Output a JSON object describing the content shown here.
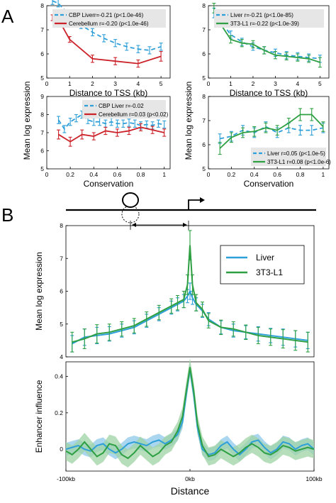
{
  "panel_labels": [
    "A",
    "B"
  ],
  "colors": {
    "cbp_liver": "#2e9fd8",
    "cerebellum": "#cc2229",
    "liver": "#2e9fd8",
    "l1": "#2ea043",
    "band_liver": "#8dc8ea",
    "band_l1": "#9fd3a4"
  },
  "diagram": {
    "tss_label": "0kb"
  },
  "chart_data": [
    {
      "id": "a1",
      "type": "line",
      "xlabel": "Distance to TSS (kb)",
      "ylabel": "",
      "xlim": [
        0,
        5.4
      ],
      "ylim": [
        5,
        8
      ],
      "xticks": [
        0,
        1,
        2,
        3,
        4,
        5
      ],
      "yticks": [
        5,
        6,
        7,
        8
      ],
      "series": [
        {
          "name": "CBP Liver",
          "legend": "CBP Liverr=-0.21 (p<1.0e-46)",
          "color_key": "cbp_liver",
          "dashed": true,
          "x": [
            0.25,
            0.5,
            1,
            1.5,
            2,
            2.5,
            3,
            3.5,
            4,
            4.5,
            5
          ],
          "y": [
            8.2,
            8.1,
            7.6,
            7.2,
            6.9,
            6.65,
            6.45,
            6.3,
            6.2,
            6.15,
            6.3
          ],
          "err": [
            0.15,
            0.15,
            0.15,
            0.15,
            0.15,
            0.15,
            0.15,
            0.15,
            0.15,
            0.15,
            0.15
          ]
        },
        {
          "name": "Cerebellum",
          "legend": "Cerebellum r=-0.20 (p<1.0e-46)",
          "color_key": "cerebellum",
          "dashed": false,
          "x": [
            0.25,
            0.5,
            1,
            2,
            3,
            4,
            5
          ],
          "y": [
            7.5,
            7.45,
            6.6,
            5.8,
            5.7,
            5.6,
            5.9
          ],
          "err": [
            0.12,
            0.12,
            0.12,
            0.15,
            0.15,
            0.15,
            0.2
          ]
        }
      ]
    },
    {
      "id": "a2",
      "type": "line",
      "xlabel": "Distance to TSS (kb)",
      "ylabel": "",
      "xlim": [
        0,
        5.4
      ],
      "ylim": [
        5,
        8
      ],
      "xticks": [
        0,
        1,
        2,
        3,
        4,
        5
      ],
      "yticks": [
        5,
        6,
        7,
        8
      ],
      "series": [
        {
          "name": "Liver",
          "legend": "Liver r=-0.21 (p<1.0e-85)",
          "color_key": "liver",
          "dashed": true,
          "x": [
            0.25,
            0.5,
            1,
            1.5,
            2,
            2.5,
            3,
            3.5,
            4,
            4.5,
            5
          ],
          "y": [
            7.7,
            7.4,
            6.8,
            6.5,
            6.3,
            6.15,
            6.05,
            5.95,
            5.9,
            5.85,
            5.8
          ],
          "err": [
            0.2,
            0.15,
            0.15,
            0.15,
            0.15,
            0.15,
            0.15,
            0.15,
            0.15,
            0.15,
            0.15
          ]
        },
        {
          "name": "3T3-L1",
          "legend": "3T3-L1 r=-0.22 (p<1.0e-39)",
          "color_key": "l1",
          "dashed": false,
          "x": [
            0.25,
            0.5,
            1,
            1.5,
            2,
            2.5,
            3,
            3.5,
            4,
            4.5,
            5
          ],
          "y": [
            7.9,
            7.3,
            6.6,
            6.45,
            6.4,
            6.15,
            5.95,
            5.9,
            5.85,
            5.8,
            5.65
          ],
          "err": [
            0.2,
            0.15,
            0.15,
            0.15,
            0.15,
            0.15,
            0.15,
            0.15,
            0.15,
            0.15,
            0.2
          ]
        }
      ]
    },
    {
      "id": "a3",
      "type": "line",
      "xlabel": "Conservation",
      "ylabel": "",
      "xlim": [
        0,
        1.05
      ],
      "ylim": [
        5,
        9
      ],
      "xticks": [
        0,
        0.2,
        0.4,
        0.6,
        0.8,
        1
      ],
      "yticks": [
        5,
        6,
        7,
        8,
        9
      ],
      "series": [
        {
          "name": "CBP Liver",
          "legend": "CBP Liver r=-0.02",
          "color_key": "cbp_liver",
          "dashed": true,
          "x": [
            0.1,
            0.15,
            0.2,
            0.25,
            0.3,
            0.35,
            0.4,
            0.45,
            0.5,
            0.55,
            0.6,
            0.65,
            0.7,
            0.75,
            0.8,
            0.85,
            0.9,
            0.95,
            1.0
          ],
          "y": [
            7.7,
            7.2,
            7.6,
            7.8,
            8.0,
            7.7,
            7.6,
            7.6,
            7.5,
            7.6,
            7.5,
            7.5,
            7.55,
            7.5,
            7.4,
            7.45,
            7.4,
            7.5,
            7.45
          ],
          "err": [
            0.2,
            0.2,
            0.2,
            0.2,
            0.2,
            0.2,
            0.2,
            0.2,
            0.2,
            0.2,
            0.2,
            0.2,
            0.2,
            0.2,
            0.2,
            0.2,
            0.2,
            0.2,
            0.2
          ]
        },
        {
          "name": "Cerebellum",
          "legend": "Cerebellum r=0.03 (p<0.02)",
          "color_key": "cerebellum",
          "dashed": false,
          "x": [
            0.1,
            0.2,
            0.3,
            0.4,
            0.5,
            0.6,
            0.7,
            0.8,
            0.9,
            1.0
          ],
          "y": [
            6.9,
            6.5,
            6.9,
            6.8,
            7.1,
            7.0,
            7.1,
            7.3,
            7.15,
            7.0
          ],
          "err": [
            0.25,
            0.25,
            0.25,
            0.2,
            0.2,
            0.2,
            0.2,
            0.2,
            0.2,
            0.2
          ]
        }
      ]
    },
    {
      "id": "a4",
      "type": "line",
      "xlabel": "Conservation",
      "ylabel": "",
      "xlim": [
        0,
        1.05
      ],
      "ylim": [
        5,
        8
      ],
      "xticks": [
        0,
        0.2,
        0.4,
        0.6,
        0.8,
        1
      ],
      "yticks": [
        5,
        6,
        7,
        8
      ],
      "series": [
        {
          "name": "Liver",
          "legend": "Liver r=0.05 (p<1.0e-5)",
          "color_key": "liver",
          "dashed": true,
          "x": [
            0.1,
            0.2,
            0.3,
            0.4,
            0.5,
            0.6,
            0.7,
            0.8,
            0.9,
            1.0
          ],
          "y": [
            6.25,
            6.35,
            6.6,
            6.5,
            6.75,
            6.5,
            6.7,
            6.6,
            6.6,
            6.7
          ],
          "err": [
            0.2,
            0.2,
            0.2,
            0.2,
            0.2,
            0.2,
            0.2,
            0.2,
            0.2,
            0.2
          ]
        },
        {
          "name": "3T3-L1",
          "legend": "3T3-L1 r=0.08 (p<1.0e-6)",
          "color_key": "l1",
          "dashed": false,
          "x": [
            0.1,
            0.2,
            0.3,
            0.4,
            0.5,
            0.6,
            0.7,
            0.8,
            0.9,
            1.0
          ],
          "y": [
            5.85,
            6.3,
            6.5,
            6.55,
            6.7,
            6.6,
            6.9,
            7.25,
            7.25,
            6.75
          ],
          "err": [
            0.25,
            0.2,
            0.2,
            0.2,
            0.2,
            0.2,
            0.2,
            0.25,
            0.25,
            0.2
          ]
        }
      ]
    },
    {
      "id": "b1",
      "type": "line",
      "xlabel": "",
      "ylabel": "Mean log expression",
      "xlim": [
        -100,
        100
      ],
      "ylim": [
        4,
        8
      ],
      "xticks": [],
      "yticks": [
        4,
        5,
        6,
        7,
        8
      ],
      "legend_position": "top-right",
      "series": [
        {
          "name": "Liver",
          "legend": "Liver",
          "color_key": "liver",
          "dashed": false,
          "x": [
            -95,
            -85,
            -75,
            -65,
            -55,
            -45,
            -35,
            -25,
            -15,
            -10,
            -5,
            -2,
            0,
            2,
            5,
            10,
            15,
            25,
            35,
            45,
            55,
            65,
            75,
            85,
            95
          ],
          "y": [
            4.4,
            4.6,
            4.65,
            4.7,
            4.8,
            4.9,
            5.1,
            5.3,
            5.5,
            5.6,
            5.7,
            5.85,
            6.0,
            5.8,
            5.6,
            5.4,
            5.15,
            4.9,
            4.8,
            4.75,
            4.7,
            4.65,
            4.6,
            4.55,
            4.5
          ],
          "err": [
            0.25,
            0.25,
            0.25,
            0.22,
            0.2,
            0.2,
            0.2,
            0.2,
            0.2,
            0.2,
            0.2,
            0.2,
            0.25,
            0.2,
            0.2,
            0.2,
            0.2,
            0.2,
            0.2,
            0.2,
            0.22,
            0.22,
            0.25,
            0.25,
            0.25
          ]
        },
        {
          "name": "3T3-L1",
          "legend": "3T3-L1",
          "color_key": "l1",
          "dashed": false,
          "x": [
            -95,
            -85,
            -75,
            -65,
            -55,
            -45,
            -35,
            -25,
            -15,
            -10,
            -5,
            -2,
            0,
            2,
            5,
            10,
            15,
            25,
            35,
            45,
            55,
            65,
            75,
            85,
            95
          ],
          "y": [
            4.45,
            4.55,
            4.7,
            4.75,
            4.85,
            4.95,
            5.15,
            5.35,
            5.55,
            5.65,
            5.75,
            6.2,
            7.4,
            6.2,
            5.65,
            5.45,
            5.1,
            4.9,
            4.85,
            4.75,
            4.65,
            4.6,
            4.55,
            4.5,
            4.45
          ],
          "err": [
            0.3,
            0.3,
            0.28,
            0.25,
            0.22,
            0.22,
            0.22,
            0.22,
            0.22,
            0.22,
            0.25,
            0.3,
            0.45,
            0.3,
            0.25,
            0.22,
            0.22,
            0.22,
            0.22,
            0.22,
            0.25,
            0.25,
            0.28,
            0.3,
            0.3
          ]
        }
      ]
    },
    {
      "id": "b2",
      "type": "line",
      "xlabel": "Distance",
      "ylabel": "Enhancer influence",
      "xlim": [
        -100,
        100
      ],
      "ylim": [
        -0.12,
        0.48
      ],
      "xticks": [
        -100,
        0,
        100
      ],
      "xtick_labels": [
        "-100kb",
        "0kb",
        "100kb"
      ],
      "yticks": [
        0,
        0.2,
        0.4
      ],
      "series": [
        {
          "name": "Liver",
          "color_key": "liver",
          "band_key": "band_liver",
          "x": [
            -100,
            -95,
            -90,
            -85,
            -80,
            -75,
            -70,
            -65,
            -60,
            -55,
            -50,
            -45,
            -40,
            -35,
            -30,
            -25,
            -20,
            -15,
            -10,
            -6,
            -3,
            0,
            3,
            6,
            10,
            15,
            20,
            25,
            30,
            35,
            40,
            45,
            50,
            55,
            60,
            65,
            70,
            75,
            80,
            85,
            90,
            95,
            100
          ],
          "y": [
            0.0,
            0.01,
            0.02,
            0.0,
            -0.01,
            0.02,
            0.03,
            0.0,
            -0.02,
            0.0,
            0.03,
            0.04,
            0.03,
            0.02,
            0.04,
            0.05,
            0.03,
            0.05,
            0.08,
            0.15,
            0.3,
            0.44,
            0.3,
            0.12,
            0.0,
            -0.03,
            -0.02,
            0.02,
            0.04,
            0.0,
            -0.03,
            0.0,
            0.04,
            0.05,
            0.01,
            -0.02,
            0.0,
            0.04,
            0.03,
            0.0,
            0.02,
            0.03,
            0.0
          ],
          "band": 0.035
        },
        {
          "name": "3T3-L1",
          "color_key": "l1",
          "band_key": "band_l1",
          "x": [
            -100,
            -95,
            -90,
            -85,
            -80,
            -75,
            -70,
            -65,
            -60,
            -55,
            -50,
            -45,
            -40,
            -35,
            -30,
            -25,
            -20,
            -15,
            -10,
            -6,
            -3,
            0,
            3,
            6,
            10,
            15,
            20,
            25,
            30,
            35,
            40,
            45,
            50,
            55,
            60,
            65,
            70,
            75,
            80,
            85,
            90,
            95,
            100
          ],
          "y": [
            -0.01,
            -0.03,
            0.0,
            0.04,
            0.0,
            -0.04,
            -0.02,
            0.03,
            0.02,
            -0.03,
            -0.05,
            -0.02,
            0.02,
            -0.01,
            -0.04,
            -0.02,
            0.02,
            0.04,
            0.1,
            0.18,
            0.32,
            0.45,
            0.32,
            0.14,
            0.02,
            -0.04,
            -0.03,
            0.0,
            -0.02,
            -0.04,
            -0.02,
            0.01,
            0.03,
            0.01,
            -0.02,
            -0.03,
            -0.01,
            0.02,
            0.01,
            -0.01,
            0.0,
            0.01,
            0.0
          ],
          "band": 0.05
        }
      ]
    }
  ],
  "shared_labels": {
    "a_ylabel": "Mean log expression"
  }
}
